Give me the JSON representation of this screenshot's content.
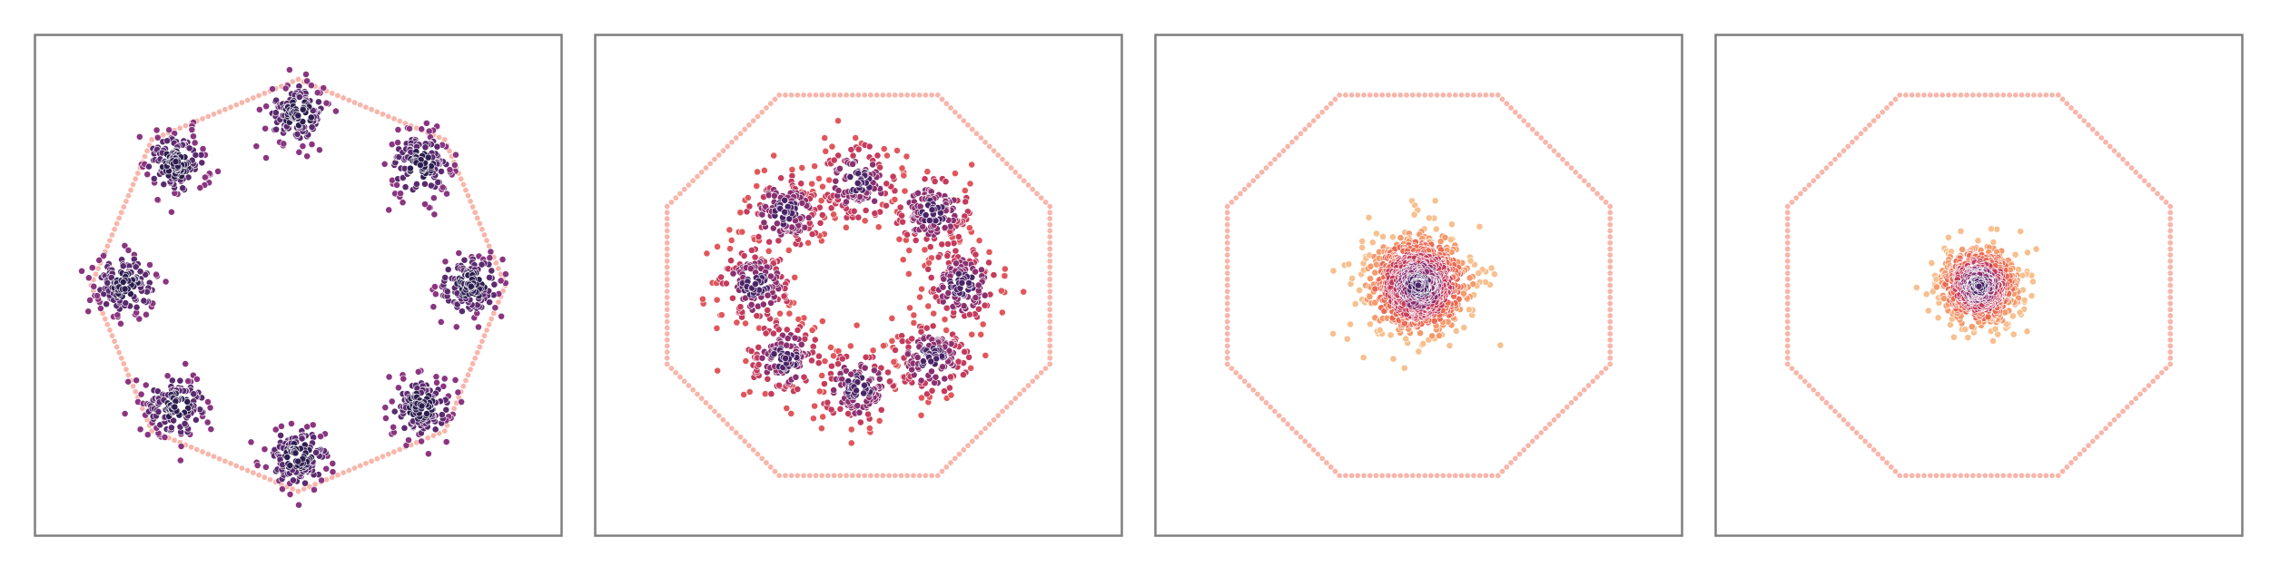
{
  "chart_data": [
    {
      "type": "scatter",
      "title": "",
      "xlabel": "",
      "ylabel": "",
      "xlim": [
        -1.15,
        1.15
      ],
      "ylim": [
        -1.1,
        1.1
      ],
      "grid": false,
      "legend": "none",
      "boundary": {
        "shape": "octagon",
        "radius": 0.9,
        "rotation_deg": 0,
        "color": "#f7a99c"
      },
      "series": [
        {
          "kind": "gaussian-mixture",
          "components": [
            {
              "x": 0.0,
              "y": 0.75,
              "sd": 0.07,
              "n": 140
            },
            {
              "x": 0.53,
              "y": 0.53,
              "sd": 0.07,
              "n": 140
            },
            {
              "x": 0.75,
              "y": 0.0,
              "sd": 0.07,
              "n": 140
            },
            {
              "x": 0.53,
              "y": -0.53,
              "sd": 0.07,
              "n": 140
            },
            {
              "x": 0.0,
              "y": -0.75,
              "sd": 0.07,
              "n": 140
            },
            {
              "x": -0.53,
              "y": -0.53,
              "sd": 0.07,
              "n": 140
            },
            {
              "x": -0.75,
              "y": 0.0,
              "sd": 0.07,
              "n": 140
            },
            {
              "x": -0.53,
              "y": 0.53,
              "sd": 0.07,
              "n": 140
            }
          ],
          "palette": [
            "#2d1e4f",
            "#5a2a6e",
            "#8a3580"
          ]
        }
      ]
    },
    {
      "type": "scatter",
      "title": "",
      "xlabel": "",
      "ylabel": "",
      "xlim": [
        -1.15,
        1.15
      ],
      "ylim": [
        -1.1,
        1.1
      ],
      "grid": false,
      "legend": "none",
      "boundary": {
        "shape": "octagon",
        "radius": 0.9,
        "rotation_deg": 22.5,
        "color": "#f7a99c"
      },
      "series": [
        {
          "kind": "gaussian-mixture",
          "components": [
            {
              "x": 0.0,
              "y": 0.45,
              "sd": 0.085,
              "n": 150
            },
            {
              "x": 0.32,
              "y": 0.32,
              "sd": 0.085,
              "n": 150
            },
            {
              "x": 0.45,
              "y": 0.0,
              "sd": 0.085,
              "n": 150
            },
            {
              "x": 0.32,
              "y": -0.32,
              "sd": 0.085,
              "n": 150
            },
            {
              "x": 0.0,
              "y": -0.45,
              "sd": 0.085,
              "n": 150
            },
            {
              "x": -0.32,
              "y": -0.32,
              "sd": 0.085,
              "n": 150
            },
            {
              "x": -0.45,
              "y": 0.0,
              "sd": 0.085,
              "n": 150
            },
            {
              "x": -0.32,
              "y": 0.32,
              "sd": 0.085,
              "n": 150
            }
          ],
          "palette": [
            "#4a2466",
            "#8a2f6f",
            "#c43b5c",
            "#e0575b"
          ]
        }
      ]
    },
    {
      "type": "scatter",
      "title": "",
      "xlabel": "",
      "ylabel": "",
      "xlim": [
        -1.15,
        1.15
      ],
      "ylim": [
        -1.1,
        1.1
      ],
      "grid": false,
      "legend": "none",
      "boundary": {
        "shape": "octagon",
        "radius": 0.9,
        "rotation_deg": 22.5,
        "color": "#f7a99c"
      },
      "series": [
        {
          "kind": "gaussian-mixture",
          "components": [
            {
              "x": 0.0,
              "y": 0.0,
              "sd": 0.11,
              "n": 900
            }
          ],
          "palette": [
            "#4a2466",
            "#8a2f6f",
            "#c43b5c",
            "#eb6a53",
            "#f59a6c",
            "#f7c08f"
          ]
        }
      ]
    },
    {
      "type": "scatter",
      "title": "",
      "xlabel": "",
      "ylabel": "",
      "xlim": [
        -1.15,
        1.15
      ],
      "ylim": [
        -1.1,
        1.1
      ],
      "grid": false,
      "legend": "none",
      "boundary": {
        "shape": "octagon",
        "radius": 0.9,
        "rotation_deg": 22.5,
        "color": "#f7a99c"
      },
      "series": [
        {
          "kind": "gaussian-mixture",
          "components": [
            {
              "x": 0.0,
              "y": 0.0,
              "sd": 0.085,
              "n": 700
            }
          ],
          "palette": [
            "#4a2466",
            "#8a2f6f",
            "#c43b5c",
            "#eb6a53",
            "#f59a6c",
            "#f7c08f"
          ]
        }
      ]
    }
  ]
}
